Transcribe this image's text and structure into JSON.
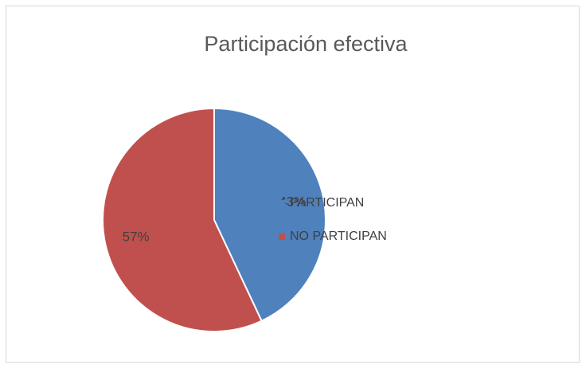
{
  "chart_data": {
    "type": "pie",
    "title": "Participación efectiva",
    "categories": [
      "PARTICIPAN",
      "NO PARTICIPAN"
    ],
    "values": [
      43,
      57
    ],
    "value_labels": [
      "43%",
      "57%"
    ],
    "colors": [
      "#4f81bd",
      "#c0504d"
    ],
    "legend": "right"
  }
}
